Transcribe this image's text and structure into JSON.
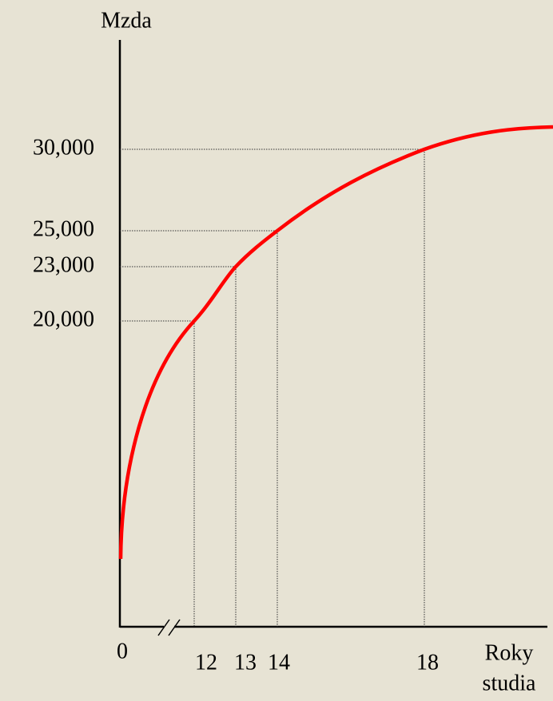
{
  "y_axis_label": "Mzda",
  "x_axis_label": [
    "Roky",
    "studia"
  ],
  "origin": "0",
  "points": [
    {
      "x": "12",
      "y": "20,000"
    },
    {
      "x": "13",
      "y": "23,000"
    },
    {
      "x": "14",
      "y": "25,000"
    },
    {
      "x": "18",
      "y": "30,000"
    }
  ]
}
